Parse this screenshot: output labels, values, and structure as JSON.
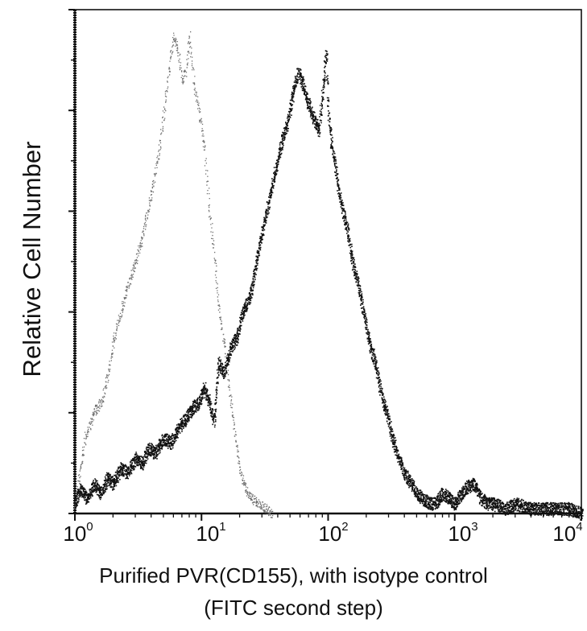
{
  "chart_data": {
    "type": "line",
    "subtype": "flow-cytometry-histogram-overlay",
    "title": "",
    "xlabel": "Purified PVR(CD155), with isotype control",
    "xlabel_line2": "(FITC second step)",
    "ylabel": "Relative Cell Number",
    "xscale": "log",
    "xlim": [
      1,
      10000
    ],
    "ylim": [
      0,
      100
    ],
    "x_ticks": [
      {
        "base": "10",
        "exp": "0",
        "value": 1
      },
      {
        "base": "10",
        "exp": "1",
        "value": 10
      },
      {
        "base": "10",
        "exp": "2",
        "value": 100
      },
      {
        "base": "10",
        "exp": "3",
        "value": 1000
      },
      {
        "base": "10",
        "exp": "4",
        "value": 10000
      }
    ],
    "y_major_ticks": [
      0,
      20,
      40,
      60,
      80,
      100
    ],
    "y_tick_labels_shown": false,
    "grid": false,
    "legend": null,
    "series": [
      {
        "name": "Isotype control",
        "style": "dotted-grey",
        "color": "#6e6e6e",
        "x": [
          1.0,
          1.2,
          1.4,
          1.6,
          1.8,
          2.0,
          2.3,
          2.6,
          3.0,
          3.4,
          3.8,
          4.2,
          4.6,
          5.0,
          5.5,
          6.0,
          6.5,
          7.0,
          7.5,
          8.0,
          8.7,
          9.5,
          10.5,
          11.5,
          12.5,
          13.5,
          15.0,
          16.5,
          18.0,
          20.0,
          22.0,
          25.0,
          28.0,
          32.0,
          36.0
        ],
        "y": [
          2,
          15,
          20,
          22,
          27,
          34,
          40,
          45,
          50,
          55,
          61,
          66,
          72,
          79,
          88,
          95,
          92,
          86,
          88,
          95,
          85,
          80,
          73,
          60,
          52,
          42,
          34,
          25,
          17,
          9,
          5,
          3,
          2,
          1,
          0
        ]
      },
      {
        "name": "Purified PVR (CD155)",
        "style": "dotted-black",
        "color": "#111111",
        "x": [
          1.0,
          1.1,
          1.25,
          1.4,
          1.6,
          1.8,
          2.0,
          2.3,
          2.6,
          3.0,
          3.4,
          3.8,
          4.3,
          5.0,
          5.7,
          6.5,
          7.5,
          8.5,
          9.5,
          10.5,
          11.5,
          12.5,
          13.5,
          15.0,
          17.0,
          19.0,
          21.0,
          24.0,
          27.0,
          30.0,
          34.0,
          38.0,
          43.0,
          48.0,
          53.0,
          58.0,
          63.0,
          68.0,
          73.0,
          78.0,
          84.0,
          90.0,
          96.0,
          100.0,
          105.0,
          112.0,
          120.0,
          130.0,
          142.0,
          155.0,
          170.0,
          190.0,
          210.0,
          235.0,
          260.0,
          290.0,
          320.0,
          360.0,
          400.0,
          450.0,
          500.0,
          560.0,
          630.0,
          700.0,
          800.0,
          900.0,
          1000.0,
          1200.0,
          1400.0,
          1600.0,
          1800.0,
          2000.0,
          2500.0,
          3000.0,
          4000.0,
          5000.0,
          6500.0,
          8000.0,
          10000.0
        ],
        "y": [
          2,
          5,
          3,
          6,
          4,
          7,
          6,
          9,
          8,
          11,
          10,
          13,
          12,
          15,
          14,
          17,
          19,
          21,
          22,
          25,
          22,
          18,
          30,
          28,
          33,
          35,
          40,
          43,
          50,
          56,
          62,
          68,
          74,
          78,
          84,
          88,
          85,
          82,
          80,
          78,
          76,
          84,
          92,
          80,
          74,
          70,
          64,
          60,
          56,
          50,
          46,
          40,
          34,
          30,
          24,
          20,
          15,
          11,
          8,
          6,
          4,
          3,
          2,
          2,
          4,
          3,
          2,
          5,
          6,
          3,
          2,
          2,
          1,
          2,
          1,
          1,
          1,
          1,
          0
        ]
      }
    ]
  },
  "axes": {
    "ylabel": "Relative Cell Number",
    "xlabel_line1": "Purified PVR(CD155), with isotype control",
    "xlabel_line2": "(FITC second step)",
    "xticks": [
      {
        "base": "10",
        "exp": "0"
      },
      {
        "base": "10",
        "exp": "1"
      },
      {
        "base": "10",
        "exp": "2"
      },
      {
        "base": "10",
        "exp": "3"
      },
      {
        "base": "10",
        "exp": "4"
      }
    ]
  },
  "colors": {
    "frame": "#111111",
    "isotype": "#6e6e6e",
    "pvr": "#111111",
    "background": "#ffffff"
  }
}
